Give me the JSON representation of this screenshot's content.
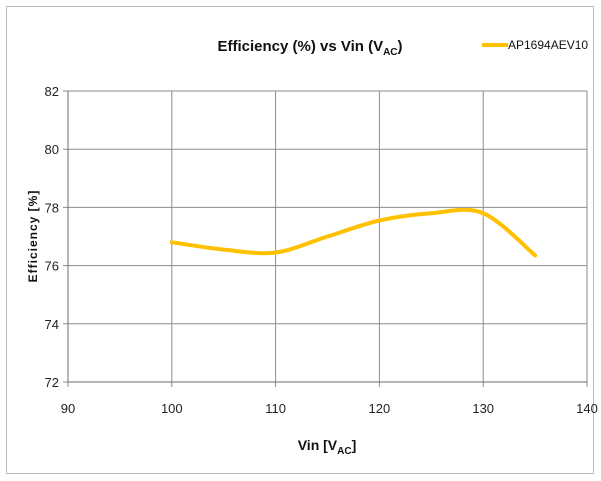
{
  "chart_data": {
    "type": "line",
    "title": {
      "main": "Efficiency (%) vs Vin (V",
      "sub": "AC",
      "tail": ")"
    },
    "xlabel": {
      "main": "Vin [V",
      "sub": "AC",
      "tail": "]"
    },
    "ylabel": "Efficiency [%]",
    "xlim": [
      90,
      140
    ],
    "ylim": [
      72,
      82
    ],
    "xticks": [
      90,
      100,
      110,
      120,
      130,
      140
    ],
    "yticks": [
      72,
      74,
      76,
      78,
      80,
      82
    ],
    "grid": true,
    "legend_position": "top-right",
    "series": [
      {
        "name": "AP1694AEV10",
        "color": "#FFC000",
        "x": [
          100,
          105,
          110,
          115,
          120,
          125,
          130,
          135
        ],
        "y": [
          76.8,
          76.55,
          76.45,
          77.0,
          77.55,
          77.8,
          77.8,
          76.35
        ]
      }
    ]
  }
}
